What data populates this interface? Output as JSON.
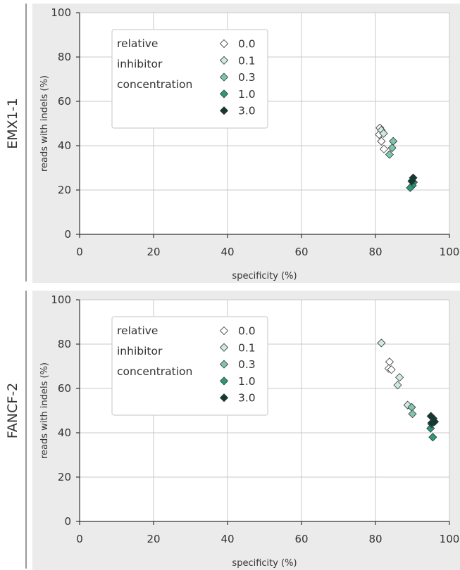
{
  "palette": {
    "0.0": "#ffffff",
    "0.1": "#cfeae0",
    "0.3": "#7ec4ae",
    "1.0": "#2a9a7d",
    "3.0": "#0f3b32"
  },
  "chart_data": [
    {
      "type": "scatter",
      "row_label": "EMX1-1",
      "xlabel": "specificity (%)",
      "ylabel": "reads with indels (%)",
      "xlim": [
        0,
        100
      ],
      "ylim": [
        0,
        100
      ],
      "xticks": [
        "0",
        "20",
        "40",
        "60",
        "80",
        "100"
      ],
      "yticks": [
        "0",
        "20",
        "40",
        "60",
        "80",
        "100"
      ],
      "grid": true,
      "marker": "diamond",
      "legend": {
        "title_lines": [
          "relative",
          "inhibitor",
          "concentration"
        ],
        "placement": "top-left"
      },
      "series": [
        {
          "name": "0.0",
          "points": [
            [
              81.2,
              48.0
            ],
            [
              81.0,
              45.0
            ],
            [
              81.6,
              42.0
            ],
            [
              82.3,
              38.5
            ]
          ]
        },
        {
          "name": "0.1",
          "points": [
            [
              81.6,
              47.0
            ],
            [
              82.2,
              45.5
            ]
          ]
        },
        {
          "name": "0.3",
          "points": [
            [
              84.8,
              42.0
            ],
            [
              84.5,
              39.0
            ],
            [
              83.8,
              36.0
            ]
          ]
        },
        {
          "name": "1.0",
          "points": [
            [
              90.3,
              23.5
            ],
            [
              90.0,
              22.0
            ],
            [
              89.4,
              21.0
            ]
          ]
        },
        {
          "name": "3.0",
          "points": [
            [
              90.2,
              25.5
            ],
            [
              89.8,
              24.0
            ]
          ]
        }
      ]
    },
    {
      "type": "scatter",
      "row_label": "FANCF-2",
      "xlabel": "specificity (%)",
      "ylabel": "reads with indels (%)",
      "xlim": [
        0,
        100
      ],
      "ylim": [
        0,
        100
      ],
      "xticks": [
        "0",
        "20",
        "40",
        "60",
        "80",
        "100"
      ],
      "yticks": [
        "0",
        "20",
        "40",
        "60",
        "80",
        "100"
      ],
      "grid": true,
      "marker": "diamond",
      "legend": {
        "title_lines": [
          "relative",
          "inhibitor",
          "concentration"
        ],
        "placement": "top-left"
      },
      "series": [
        {
          "name": "0.0",
          "points": [
            [
              83.8,
              72.0
            ],
            [
              83.6,
              69.0
            ],
            [
              84.3,
              68.5
            ]
          ]
        },
        {
          "name": "0.1",
          "points": [
            [
              81.6,
              80.5
            ],
            [
              86.5,
              65.0
            ],
            [
              86.0,
              61.5
            ],
            [
              88.7,
              52.5
            ]
          ]
        },
        {
          "name": "0.3",
          "points": [
            [
              89.8,
              51.5
            ],
            [
              90.0,
              48.5
            ]
          ]
        },
        {
          "name": "1.0",
          "points": [
            [
              94.9,
              42.0
            ],
            [
              95.5,
              38.0
            ],
            [
              95.2,
              44.0
            ]
          ]
        },
        {
          "name": "3.0",
          "points": [
            [
              95.0,
              47.5
            ],
            [
              95.6,
              46.5
            ],
            [
              95.2,
              44.5
            ],
            [
              96.0,
              45.0
            ]
          ]
        }
      ]
    }
  ]
}
